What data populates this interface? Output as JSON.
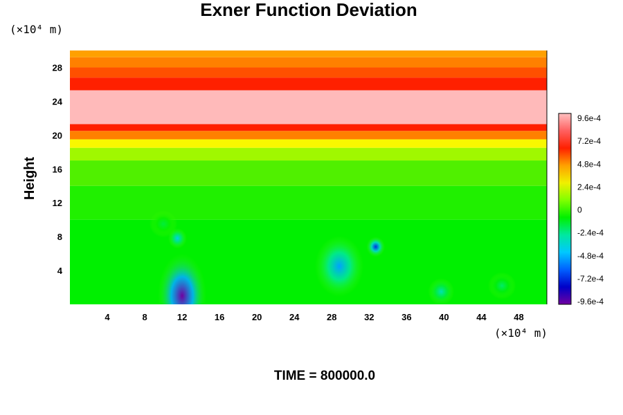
{
  "chart_data": {
    "type": "heatmap",
    "title": "Exner Function Deviation",
    "ylabel": "Height",
    "y_unit_label": "(×10⁴ m)",
    "x_unit_label": "(×10⁴ m)",
    "x_ticks": [
      4,
      8,
      12,
      16,
      20,
      24,
      28,
      32,
      36,
      40,
      44,
      48
    ],
    "y_ticks": [
      4,
      8,
      12,
      16,
      20,
      24,
      28
    ],
    "xlim": [
      0,
      51
    ],
    "ylim": [
      0,
      30
    ],
    "footer": "TIME = 800000.0",
    "colorbar": {
      "labels": [
        "9.6e-4",
        "7.2e-4",
        "4.8e-4",
        "2.4e-4",
        "0",
        "-2.4e-4",
        "-4.8e-4",
        "-7.2e-4",
        "-9.6e-4"
      ],
      "min": -0.00096,
      "max": 0.00096,
      "stops": [
        "#7000a0",
        "#0000c8",
        "#0060ff",
        "#00c8ff",
        "#00e8a0",
        "#00f000",
        "#80ff00",
        "#f0f000",
        "#ffa000",
        "#ff2000",
        "#ff6060",
        "#ffc0c0"
      ]
    },
    "bands": [
      {
        "y0": 0,
        "y1": 10,
        "color": "#00f000"
      },
      {
        "y0": 10,
        "y1": 14,
        "color": "#20f000"
      },
      {
        "y0": 14,
        "y1": 17,
        "color": "#50f000"
      },
      {
        "y0": 17,
        "y1": 18.5,
        "color": "#a0f800"
      },
      {
        "y0": 18.5,
        "y1": 19.5,
        "color": "#f8f800"
      },
      {
        "y0": 19.5,
        "y1": 20.5,
        "color": "#ff8000"
      },
      {
        "y0": 20.5,
        "y1": 21.3,
        "color": "#ff2000"
      },
      {
        "y0": 21.3,
        "y1": 25.3,
        "color": "#ffbaba"
      },
      {
        "y0": 25.3,
        "y1": 26.8,
        "color": "#ff2000"
      },
      {
        "y0": 26.8,
        "y1": 28,
        "color": "#ff5000"
      },
      {
        "y0": 28,
        "y1": 29.2,
        "color": "#ff8000"
      },
      {
        "y0": 29.2,
        "y1": 30,
        "color": "#ffa000"
      }
    ],
    "anomalies": [
      {
        "x": 12,
        "y": 1,
        "value": -0.00096,
        "rx": 2.6,
        "ry": 5.0
      },
      {
        "x": 11.5,
        "y": 7.8,
        "value": -0.0004,
        "rx": 1.0,
        "ry": 1.2
      },
      {
        "x": 28.8,
        "y": 4.5,
        "value": -0.0005,
        "rx": 2.6,
        "ry": 3.6
      },
      {
        "x": 32.7,
        "y": 6.8,
        "value": -0.0007,
        "rx": 1.0,
        "ry": 1.2
      },
      {
        "x": 39.7,
        "y": 1.5,
        "value": -0.0003,
        "rx": 1.4,
        "ry": 1.6
      },
      {
        "x": 46.2,
        "y": 2.2,
        "value": -0.0002,
        "rx": 1.5,
        "ry": 1.6
      },
      {
        "x": 10,
        "y": 9.5,
        "value": -0.00015,
        "rx": 1.5,
        "ry": 1.6
      }
    ]
  }
}
